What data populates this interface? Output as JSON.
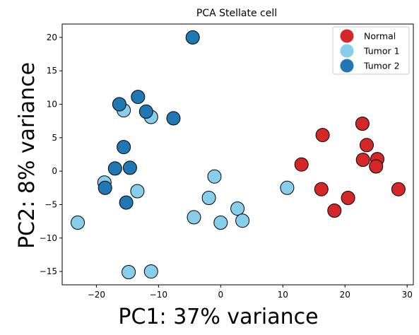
{
  "chart_data": {
    "type": "scatter",
    "title": "PCA Stellate cell",
    "xlabel": "PC1: 37% variance",
    "ylabel": "PC2: 8% variance",
    "xlim": [
      -25.5,
      31
    ],
    "ylim": [
      -17,
      22
    ],
    "xticks": [
      -20,
      -10,
      0,
      10,
      20,
      30
    ],
    "yticks": [
      -15,
      -10,
      -5,
      0,
      5,
      10,
      15,
      20
    ],
    "xtick_labels": [
      "−20",
      "−10",
      "0",
      "10",
      "20",
      "30"
    ],
    "ytick_labels": [
      "−15",
      "−10",
      "−5",
      "0",
      "5",
      "10",
      "15",
      "20"
    ],
    "grid": false,
    "legend_position": "top-right",
    "series": [
      {
        "name": "Normal",
        "color": "#d62728",
        "points": [
          [
            13.0,
            1.0
          ],
          [
            16.4,
            5.4
          ],
          [
            16.2,
            -2.7
          ],
          [
            18.3,
            -5.9
          ],
          [
            20.5,
            -4.0
          ],
          [
            22.8,
            7.1
          ],
          [
            23.5,
            3.9
          ],
          [
            22.9,
            1.7
          ],
          [
            25.2,
            1.8
          ],
          [
            25.0,
            0.7
          ],
          [
            28.6,
            -2.7
          ]
        ]
      },
      {
        "name": "Tumor 1",
        "color": "#87ceeb",
        "points": [
          [
            -23.0,
            -7.7
          ],
          [
            -18.7,
            -1.7
          ],
          [
            -15.6,
            9.1
          ],
          [
            -13.4,
            -3.0
          ],
          [
            -11.2,
            8.1
          ],
          [
            -14.8,
            -15.1
          ],
          [
            -11.2,
            -15.0
          ],
          [
            -4.3,
            -6.9
          ],
          [
            -1.0,
            -0.8
          ],
          [
            -1.9,
            -4.0
          ],
          [
            0.0,
            -7.7
          ],
          [
            2.7,
            -5.6
          ],
          [
            3.5,
            -7.4
          ],
          [
            10.7,
            -2.5
          ]
        ]
      },
      {
        "name": "Tumor 2",
        "color": "#1f77b4",
        "points": [
          [
            -4.5,
            20.0
          ],
          [
            -13.3,
            11.1
          ],
          [
            -16.3,
            10.0
          ],
          [
            -12.0,
            8.9
          ],
          [
            -7.6,
            7.9
          ],
          [
            -15.6,
            3.6
          ],
          [
            -17.0,
            0.4
          ],
          [
            -14.6,
            0.5
          ],
          [
            -18.6,
            -2.5
          ],
          [
            -15.2,
            -4.7
          ]
        ]
      }
    ]
  }
}
